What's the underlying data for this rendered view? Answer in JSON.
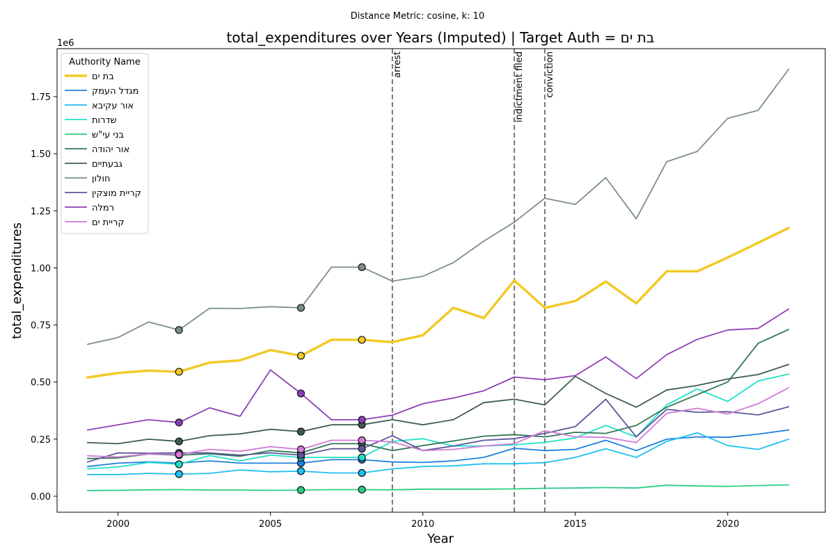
{
  "chart_data": {
    "type": "line",
    "suptitle": "Distance Metric: cosine, k: 10",
    "title": "total_expenditures over Years (Imputed) | Target Auth = בת ים",
    "xlabel": "Year",
    "ylabel": "total_expenditures",
    "y_multiplier": "1e6",
    "xlim": [
      1998,
      2023.2
    ],
    "ylim": [
      -0.07,
      1.96
    ],
    "y_units": "millions",
    "x_ticks": [
      2000,
      2005,
      2010,
      2015,
      2020
    ],
    "y_ticks": [
      0.0,
      0.25,
      0.5,
      0.75,
      1.0,
      1.25,
      1.5,
      1.75
    ],
    "y_tick_labels": [
      "0.00",
      "0.25",
      "0.50",
      "0.75",
      "1.00",
      "1.25",
      "1.50",
      "1.75"
    ],
    "grid": false,
    "legend": {
      "title": "Authority Name",
      "placement": "top-left"
    },
    "events": [
      {
        "x": 2009,
        "label": "arrest"
      },
      {
        "x": 2013,
        "label": "indictment filed"
      },
      {
        "x": 2014,
        "label": "conviction"
      }
    ],
    "x": [
      1999,
      2000,
      2001,
      2002,
      2003,
      2004,
      2005,
      2006,
      2007,
      2008,
      2009,
      2010,
      2011,
      2012,
      2013,
      2014,
      2015,
      2016,
      2017,
      2018,
      2019,
      2020,
      2021,
      2022
    ],
    "series": [
      {
        "name": "בת ים",
        "color": "#f2c926",
        "target": true,
        "values": [
          0.52,
          0.54,
          0.55,
          0.545,
          0.585,
          0.595,
          0.64,
          0.615,
          0.685,
          0.685,
          0.675,
          0.705,
          0.825,
          0.78,
          0.945,
          0.825,
          0.855,
          0.94,
          0.845,
          0.985,
          0.985,
          1.045,
          1.11,
          1.175
        ],
        "imputed_years": [
          2002,
          2006,
          2008
        ]
      },
      {
        "name": "מגדל העמק",
        "color": "#1f7fe0",
        "target": false,
        "values": [
          0.13,
          0.145,
          0.15,
          0.145,
          0.155,
          0.145,
          0.145,
          0.145,
          0.16,
          0.16,
          0.15,
          0.148,
          0.155,
          0.17,
          0.21,
          0.2,
          0.205,
          0.245,
          0.2,
          0.25,
          0.26,
          0.258,
          0.272,
          0.29
        ],
        "imputed_years": [
          2006,
          2008
        ]
      },
      {
        "name": "אור עקיבא",
        "color": "#1fbff0",
        "target": false,
        "values": [
          0.095,
          0.095,
          0.1,
          0.097,
          0.1,
          0.115,
          0.107,
          0.11,
          0.102,
          0.102,
          0.12,
          0.13,
          0.133,
          0.142,
          0.142,
          0.147,
          0.17,
          0.208,
          0.17,
          0.24,
          0.278,
          0.222,
          0.205,
          0.25
        ],
        "imputed_years": [
          2002,
          2006,
          2008
        ]
      },
      {
        "name": "שדרות",
        "color": "#1fe0c9",
        "target": false,
        "values": [
          0.12,
          0.128,
          0.148,
          0.14,
          0.178,
          0.155,
          0.18,
          0.17,
          0.17,
          0.17,
          0.24,
          0.252,
          0.22,
          0.22,
          0.225,
          0.236,
          0.255,
          0.31,
          0.26,
          0.4,
          0.47,
          0.415,
          0.505,
          0.535
        ],
        "imputed_years": [
          2002,
          2006,
          2008
        ]
      },
      {
        "name": "בני עי\"ש",
        "color": "#2ecc85",
        "target": false,
        "values": [
          0.025,
          0.026,
          0.028,
          0.029,
          0.027,
          0.027,
          0.026,
          0.027,
          0.029,
          0.029,
          0.028,
          0.031,
          0.031,
          0.031,
          0.032,
          0.035,
          0.036,
          0.038,
          0.036,
          0.048,
          0.045,
          0.043,
          0.047,
          0.05
        ],
        "imputed_years": [
          2006,
          2008
        ]
      },
      {
        "name": "אור יהודה",
        "color": "#2f7556",
        "target": false,
        "values": [
          0.165,
          0.168,
          0.185,
          0.18,
          0.186,
          0.175,
          0.2,
          0.19,
          0.23,
          0.23,
          0.2,
          0.222,
          0.242,
          0.263,
          0.27,
          0.26,
          0.28,
          0.275,
          0.31,
          0.39,
          0.445,
          0.5,
          0.67,
          0.73
        ],
        "imputed_years": [
          2002,
          2006,
          2008
        ]
      },
      {
        "name": "גבעתיים",
        "color": "#3d5c50",
        "target": false,
        "values": [
          0.235,
          0.23,
          0.25,
          0.24,
          0.265,
          0.273,
          0.293,
          0.283,
          0.313,
          0.313,
          0.335,
          0.313,
          0.335,
          0.41,
          0.425,
          0.4,
          0.525,
          0.45,
          0.39,
          0.465,
          0.485,
          0.513,
          0.533,
          0.577
        ],
        "imputed_years": [
          2002,
          2006,
          2008
        ]
      },
      {
        "name": "חולון",
        "color": "#7b8f88",
        "target": false,
        "values": [
          0.665,
          0.695,
          0.763,
          0.728,
          0.823,
          0.822,
          0.83,
          0.825,
          1.003,
          1.003,
          0.942,
          0.963,
          1.023,
          1.117,
          1.2,
          1.305,
          1.278,
          1.395,
          1.215,
          1.465,
          1.51,
          1.655,
          1.69,
          1.87
        ],
        "imputed_years": [
          2002,
          2006,
          2008
        ]
      },
      {
        "name": "קריית מוצקין",
        "color": "#5b5699",
        "target": false,
        "values": [
          0.15,
          0.19,
          0.188,
          0.19,
          0.19,
          0.18,
          0.19,
          0.18,
          0.208,
          0.208,
          0.265,
          0.2,
          0.22,
          0.245,
          0.252,
          0.275,
          0.305,
          0.425,
          0.26,
          0.38,
          0.368,
          0.37,
          0.356,
          0.392
        ],
        "imputed_years": [
          2002,
          2006,
          2008
        ]
      },
      {
        "name": "רמלה",
        "color": "#8c3fb5",
        "target": false,
        "values": [
          0.29,
          0.313,
          0.335,
          0.323,
          0.387,
          0.35,
          0.553,
          0.45,
          0.335,
          0.335,
          0.355,
          0.405,
          0.43,
          0.462,
          0.522,
          0.51,
          0.528,
          0.61,
          0.515,
          0.62,
          0.687,
          0.728,
          0.735,
          0.82
        ],
        "imputed_years": [
          2002,
          2006,
          2008
        ]
      },
      {
        "name": "קריית ים",
        "color": "#d17ad6",
        "target": false,
        "values": [
          0.177,
          0.172,
          0.185,
          0.183,
          0.205,
          0.197,
          0.217,
          0.205,
          0.245,
          0.245,
          0.238,
          0.2,
          0.205,
          0.22,
          0.23,
          0.287,
          0.26,
          0.258,
          0.235,
          0.363,
          0.385,
          0.36,
          0.405,
          0.475
        ],
        "imputed_years": [
          2002,
          2006,
          2008
        ]
      }
    ]
  }
}
